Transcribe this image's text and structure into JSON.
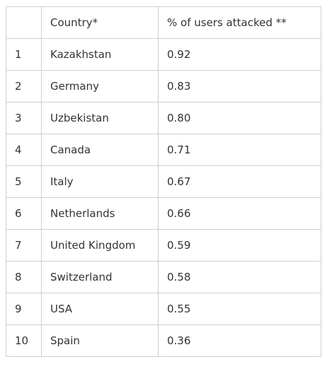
{
  "table": {
    "headers": [
      "",
      "Country*",
      "% of users attacked **"
    ],
    "rows": [
      {
        "rank": "1",
        "country": "Kazakhstan",
        "percent": "0.92"
      },
      {
        "rank": "2",
        "country": "Germany",
        "percent": "0.83"
      },
      {
        "rank": "3",
        "country": "Uzbekistan",
        "percent": "0.80"
      },
      {
        "rank": "4",
        "country": "Canada",
        "percent": "0.71"
      },
      {
        "rank": "5",
        "country": "Italy",
        "percent": "0.67"
      },
      {
        "rank": "6",
        "country": "Netherlands",
        "percent": "0.66"
      },
      {
        "rank": "7",
        "country": "United Kingdom",
        "percent": "0.59"
      },
      {
        "rank": "8",
        "country": "Switzerland",
        "percent": "0.58"
      },
      {
        "rank": "9",
        "country": "USA",
        "percent": "0.55"
      },
      {
        "rank": "10",
        "country": "Spain",
        "percent": "0.36"
      }
    ]
  },
  "colors": {
    "border": "#cfcfcf",
    "text": "#333333",
    "background": "#ffffff"
  }
}
